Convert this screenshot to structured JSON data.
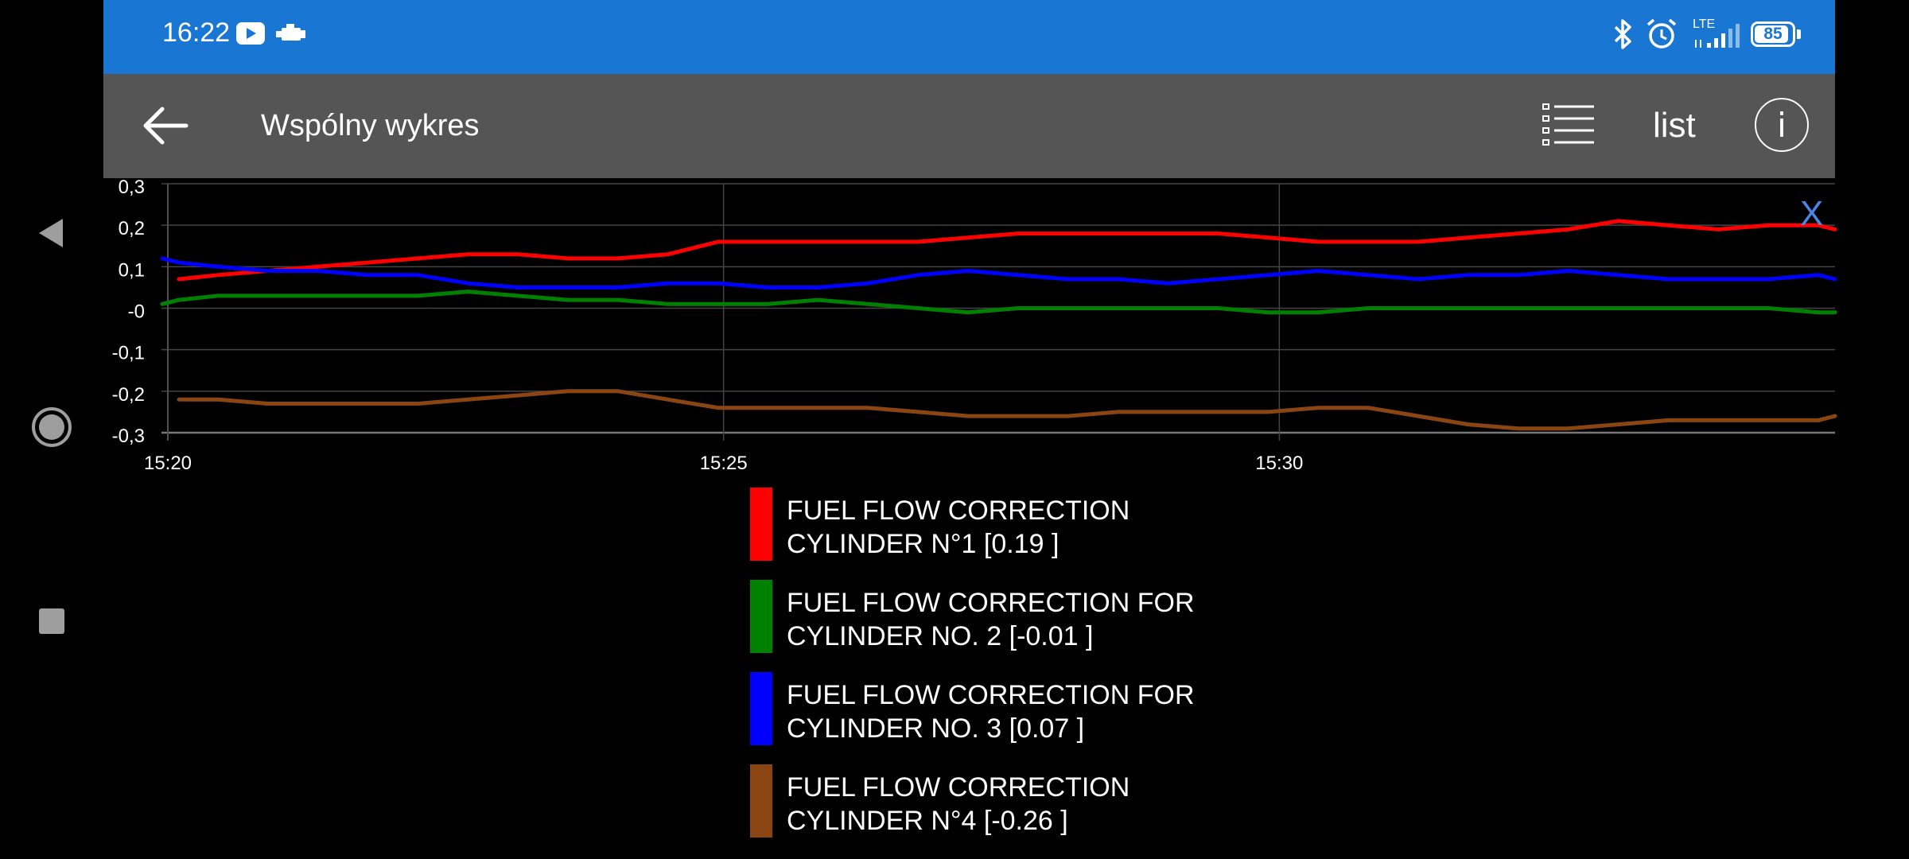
{
  "status_bar": {
    "time": "16:22",
    "network": "LTE",
    "battery": "85",
    "icons": [
      "youtube-icon",
      "engine-icon",
      "bluetooth-icon",
      "alarm-icon",
      "signal-icon",
      "battery-icon"
    ]
  },
  "app_bar": {
    "title": "Wspólny wykres",
    "list_label": "list",
    "info_glyph": "i"
  },
  "close_label": "X",
  "colors": {
    "status_bar": "#1976d2",
    "app_bar": "#555555",
    "background": "#000000",
    "close": "#4a86e8"
  },
  "chart_data": {
    "type": "line",
    "x_tick_labels": [
      "15:20",
      "15:25",
      "15:30"
    ],
    "y_tick_labels": [
      "0,3",
      "0,2",
      "0,1",
      "-0",
      "-0,1",
      "-0,2",
      "-0,3"
    ],
    "ylim": [
      -0.3,
      0.3
    ],
    "xlim": [
      0,
      15
    ],
    "x_unit": "minutes after 15:20",
    "grid": true,
    "x": [
      -0.05,
      0.1,
      0.45,
      0.9,
      1.35,
      1.8,
      2.25,
      2.7,
      3.15,
      3.6,
      4.05,
      4.5,
      4.95,
      5.4,
      5.85,
      6.3,
      6.75,
      7.2,
      7.65,
      8.1,
      8.55,
      9.0,
      9.45,
      9.9,
      10.35,
      10.8,
      11.25,
      11.7,
      12.15,
      12.6,
      13.05,
      13.5,
      13.95,
      14.4,
      14.85,
      15.0
    ],
    "series": [
      {
        "name": "FUEL FLOW CORRECTION CYLINDER N°1",
        "legend_label": "FUEL FLOW CORRECTION\nCYLINDER N°1 [0.19 ]",
        "color": "#ff0000",
        "values": [
          null,
          0.07,
          0.08,
          0.09,
          0.1,
          0.11,
          0.12,
          0.13,
          0.13,
          0.12,
          0.12,
          0.13,
          0.16,
          0.16,
          0.16,
          0.16,
          0.16,
          0.17,
          0.18,
          0.18,
          0.18,
          0.18,
          0.18,
          0.17,
          0.16,
          0.16,
          0.16,
          0.17,
          0.18,
          0.19,
          0.21,
          0.2,
          0.19,
          0.2,
          0.2,
          0.19
        ]
      },
      {
        "name": "FUEL FLOW CORRECTION FOR CYLINDER NO. 2",
        "legend_label": "FUEL FLOW CORRECTION FOR\nCYLINDER NO. 2 [-0.01 ]",
        "color": "#008000",
        "values": [
          0.01,
          0.02,
          0.03,
          0.03,
          0.03,
          0.03,
          0.03,
          0.04,
          0.03,
          0.02,
          0.02,
          0.01,
          0.01,
          0.01,
          0.02,
          0.01,
          0.0,
          -0.01,
          0.0,
          0.0,
          0.0,
          0.0,
          0.0,
          -0.01,
          -0.01,
          0.0,
          0.0,
          0.0,
          0.0,
          0.0,
          0.0,
          0.0,
          0.0,
          0.0,
          -0.01,
          -0.01
        ]
      },
      {
        "name": "FUEL FLOW CORRECTION FOR CYLINDER NO. 3",
        "legend_label": "FUEL FLOW CORRECTION FOR\nCYLINDER NO. 3 [0.07 ]",
        "color": "#0000ff",
        "values": [
          0.12,
          0.11,
          0.1,
          0.09,
          0.09,
          0.08,
          0.08,
          0.06,
          0.05,
          0.05,
          0.05,
          0.06,
          0.06,
          0.05,
          0.05,
          0.06,
          0.08,
          0.09,
          0.08,
          0.07,
          0.07,
          0.06,
          0.07,
          0.08,
          0.09,
          0.08,
          0.07,
          0.08,
          0.08,
          0.09,
          0.08,
          0.07,
          0.07,
          0.07,
          0.08,
          0.07
        ]
      },
      {
        "name": "FUEL FLOW CORRECTION CYLINDER N°4",
        "legend_label": "FUEL FLOW CORRECTION\nCYLINDER N°4 [-0.26 ]",
        "color": "#8b4513",
        "values": [
          null,
          -0.22,
          -0.22,
          -0.23,
          -0.23,
          -0.23,
          -0.23,
          -0.22,
          -0.21,
          -0.2,
          -0.2,
          -0.22,
          -0.24,
          -0.24,
          -0.24,
          -0.24,
          -0.25,
          -0.26,
          -0.26,
          -0.26,
          -0.25,
          -0.25,
          -0.25,
          -0.25,
          -0.24,
          -0.24,
          -0.26,
          -0.28,
          -0.29,
          -0.29,
          -0.28,
          -0.27,
          -0.27,
          -0.27,
          -0.27,
          -0.26
        ]
      }
    ]
  }
}
